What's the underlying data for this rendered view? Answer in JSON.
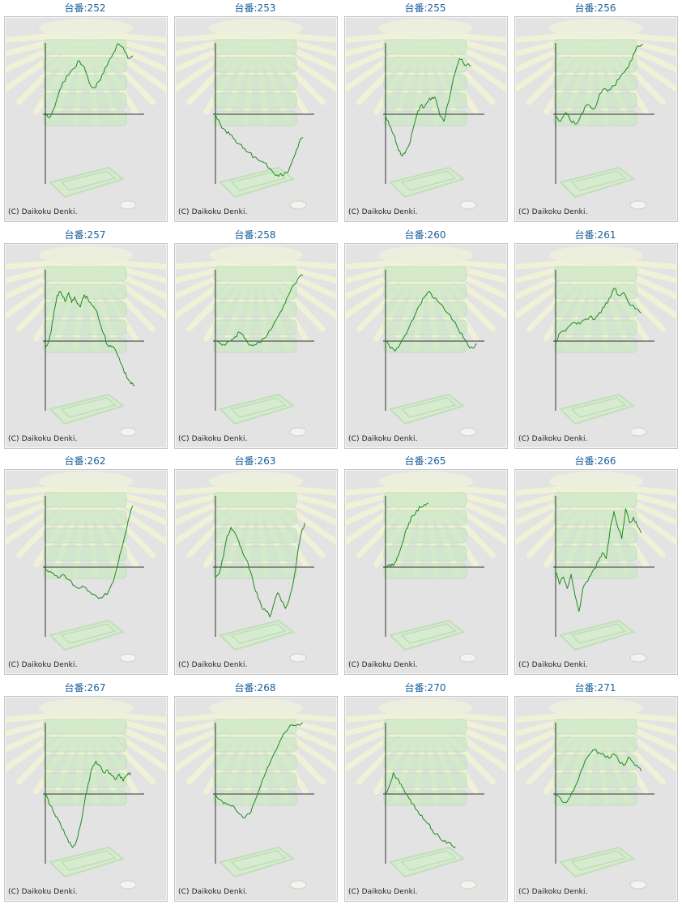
{
  "copyright": "(C) Daikoku Denki.",
  "colors": {
    "line": "#1f8a1f",
    "axis": "#333333",
    "title": "#1a5f9a",
    "panel_bg": "#e3e3e3"
  },
  "chart_data": [
    {
      "type": "line",
      "title": "台番:252",
      "x_range": [
        0,
        100
      ],
      "ylim": [
        -100,
        100
      ],
      "x": [
        0,
        4,
        8,
        13,
        18,
        24,
        30,
        35,
        40,
        45,
        50,
        55,
        60,
        65,
        70,
        75,
        80,
        85,
        90
      ],
      "values": [
        -2,
        -5,
        6,
        26,
        45,
        55,
        65,
        75,
        66,
        45,
        37,
        46,
        58,
        74,
        86,
        99,
        94,
        78,
        82
      ]
    },
    {
      "type": "line",
      "title": "台番:253",
      "x_range": [
        0,
        100
      ],
      "ylim": [
        -100,
        100
      ],
      "x": [
        0,
        5,
        10,
        15,
        20,
        25,
        30,
        35,
        40,
        45,
        50,
        56,
        62,
        66,
        70,
        74,
        78,
        82,
        86,
        90
      ],
      "values": [
        0,
        -14,
        -22,
        -29,
        -36,
        -42,
        -48,
        -54,
        -60,
        -65,
        -68,
        -76,
        -86,
        -85,
        -86,
        -82,
        -70,
        -56,
        -40,
        -32
      ]
    },
    {
      "type": "line",
      "title": "台番:255",
      "x_range": [
        0,
        100
      ],
      "ylim": [
        -100,
        100
      ],
      "x": [
        0,
        4,
        8,
        12,
        16,
        20,
        24,
        28,
        32,
        36,
        40,
        44,
        48,
        52,
        56,
        60,
        64,
        68,
        72,
        76,
        80,
        84,
        88
      ],
      "values": [
        -2,
        -16,
        -28,
        -44,
        -57,
        -55,
        -44,
        -22,
        -2,
        12,
        10,
        18,
        24,
        20,
        -2,
        -10,
        14,
        38,
        60,
        78,
        72,
        70,
        68
      ]
    },
    {
      "type": "line",
      "title": "台番:256",
      "x_range": [
        0,
        100
      ],
      "ylim": [
        -100,
        100
      ],
      "x": [
        0,
        5,
        10,
        15,
        20,
        25,
        30,
        35,
        40,
        45,
        50,
        55,
        60,
        65,
        70,
        75,
        80,
        85,
        90
      ],
      "values": [
        -2,
        -10,
        2,
        -8,
        -14,
        -5,
        10,
        12,
        8,
        28,
        36,
        34,
        40,
        49,
        58,
        66,
        84,
        96,
        98
      ]
    },
    {
      "type": "line",
      "title": "台番:257",
      "x_range": [
        0,
        100
      ],
      "ylim": [
        -100,
        100
      ],
      "x": [
        0,
        3,
        6,
        9,
        12,
        15,
        18,
        21,
        24,
        27,
        30,
        33,
        36,
        40,
        44,
        48,
        52,
        56,
        60,
        64,
        68,
        72,
        76,
        80,
        84,
        88,
        92
      ],
      "values": [
        -10,
        -2,
        14,
        42,
        64,
        70,
        62,
        56,
        68,
        54,
        62,
        52,
        48,
        65,
        58,
        50,
        44,
        26,
        10,
        -6,
        -8,
        -12,
        -24,
        -38,
        -52,
        -60,
        -62
      ]
    },
    {
      "type": "line",
      "title": "台番:258",
      "x_range": [
        0,
        100
      ],
      "ylim": [
        -100,
        100
      ],
      "x": [
        0,
        5,
        10,
        15,
        20,
        25,
        30,
        35,
        40,
        45,
        50,
        55,
        60,
        65,
        70,
        75,
        80,
        85,
        90
      ],
      "values": [
        0,
        -3,
        -6,
        0,
        6,
        12,
        4,
        -6,
        -5,
        -2,
        4,
        14,
        24,
        36,
        50,
        64,
        78,
        88,
        92
      ]
    },
    {
      "type": "line",
      "title": "台番:260",
      "x_range": [
        0,
        100
      ],
      "ylim": [
        -100,
        100
      ],
      "x": [
        0,
        5,
        10,
        15,
        20,
        25,
        30,
        35,
        40,
        45,
        50,
        55,
        60,
        65,
        70,
        75,
        80,
        85,
        90,
        94
      ],
      "values": [
        0,
        -10,
        -14,
        -4,
        8,
        22,
        36,
        50,
        62,
        70,
        60,
        54,
        46,
        38,
        28,
        16,
        5,
        -6,
        -10,
        -4
      ]
    },
    {
      "type": "line",
      "title": "台番:261",
      "x_range": [
        0,
        100
      ],
      "ylim": [
        -100,
        100
      ],
      "x": [
        0,
        5,
        10,
        15,
        20,
        25,
        30,
        35,
        40,
        45,
        50,
        55,
        60,
        65,
        70,
        75,
        80,
        85,
        88
      ],
      "values": [
        -2,
        12,
        14,
        22,
        26,
        24,
        30,
        34,
        30,
        40,
        48,
        60,
        74,
        64,
        68,
        54,
        50,
        44,
        40
      ]
    },
    {
      "type": "line",
      "title": "台番:262",
      "x_range": [
        0,
        100
      ],
      "ylim": [
        -100,
        100
      ],
      "x": [
        0,
        5,
        10,
        15,
        20,
        25,
        30,
        35,
        40,
        45,
        50,
        55,
        60,
        65,
        70,
        75,
        80,
        85,
        90
      ],
      "values": [
        -2,
        -6,
        -12,
        -14,
        -12,
        -18,
        -26,
        -30,
        -28,
        -34,
        -38,
        -44,
        -40,
        -34,
        -20,
        6,
        34,
        64,
        86
      ]
    },
    {
      "type": "line",
      "title": "台番:263",
      "x_range": [
        0,
        100
      ],
      "ylim": [
        -100,
        100
      ],
      "x": [
        0,
        4,
        8,
        12,
        16,
        20,
        24,
        28,
        32,
        36,
        40,
        44,
        48,
        52,
        56,
        60,
        64,
        68,
        72,
        76,
        80,
        84,
        88,
        92
      ],
      "values": [
        -14,
        -8,
        14,
        44,
        56,
        48,
        36,
        20,
        10,
        -6,
        -28,
        -44,
        -58,
        -62,
        -70,
        -52,
        -36,
        -48,
        -58,
        -44,
        -22,
        14,
        46,
        62
      ]
    },
    {
      "type": "line",
      "title": "台番:265",
      "x_range": [
        0,
        100
      ],
      "ylim": [
        -100,
        100
      ],
      "x": [
        0,
        4,
        8,
        12,
        16,
        20,
        24,
        28,
        32,
        36,
        40,
        44
      ],
      "values": [
        -2,
        4,
        2,
        14,
        28,
        48,
        62,
        72,
        80,
        84,
        88,
        90
      ]
    },
    {
      "type": "line",
      "title": "台番:266",
      "x_range": [
        0,
        100
      ],
      "ylim": [
        -100,
        100
      ],
      "x": [
        0,
        4,
        8,
        12,
        16,
        20,
        24,
        28,
        32,
        36,
        40,
        44,
        48,
        52,
        56,
        60,
        64,
        68,
        72,
        76,
        80,
        84,
        88
      ],
      "values": [
        -6,
        -24,
        -14,
        -30,
        -10,
        -40,
        -62,
        -30,
        -20,
        -12,
        -2,
        8,
        20,
        12,
        52,
        78,
        56,
        40,
        82,
        62,
        70,
        58,
        48
      ]
    },
    {
      "type": "line",
      "title": "台番:267",
      "x_range": [
        0,
        100
      ],
      "ylim": [
        -100,
        100
      ],
      "x": [
        0,
        4,
        8,
        12,
        16,
        20,
        24,
        28,
        32,
        36,
        40,
        44,
        48,
        52,
        56,
        60,
        64,
        68,
        72,
        76,
        80,
        84,
        88
      ],
      "values": [
        0,
        -14,
        -24,
        -32,
        -44,
        -56,
        -68,
        -75,
        -66,
        -44,
        -14,
        14,
        36,
        46,
        40,
        30,
        34,
        26,
        20,
        28,
        18,
        26,
        30
      ]
    },
    {
      "type": "line",
      "title": "台番:268",
      "x_range": [
        0,
        100
      ],
      "ylim": [
        -100,
        100
      ],
      "x": [
        0,
        5,
        10,
        15,
        20,
        25,
        30,
        35,
        40,
        45,
        50,
        55,
        60,
        65,
        70,
        75,
        80,
        85,
        90
      ],
      "values": [
        0,
        -8,
        -12,
        -16,
        -20,
        -28,
        -34,
        -28,
        -12,
        6,
        24,
        40,
        56,
        70,
        84,
        92,
        96,
        98,
        100
      ]
    },
    {
      "type": "line",
      "title": "台番:270",
      "x_range": [
        0,
        100
      ],
      "ylim": [
        -100,
        100
      ],
      "x": [
        0,
        4,
        8,
        12,
        16,
        20,
        24,
        28,
        32,
        36,
        40,
        44,
        48,
        52,
        56,
        60,
        64,
        68,
        72
      ],
      "values": [
        0,
        12,
        30,
        22,
        14,
        2,
        -6,
        -14,
        -22,
        -30,
        -36,
        -42,
        -50,
        -56,
        -62,
        -66,
        -68,
        -72,
        -74
      ]
    },
    {
      "type": "line",
      "title": "台番:271",
      "x_range": [
        0,
        100
      ],
      "ylim": [
        -100,
        100
      ],
      "x": [
        0,
        5,
        10,
        15,
        20,
        25,
        30,
        35,
        40,
        45,
        50,
        55,
        60,
        65,
        70,
        75,
        80,
        85,
        88
      ],
      "values": [
        0,
        -6,
        -12,
        -4,
        10,
        28,
        46,
        56,
        62,
        58,
        54,
        50,
        56,
        46,
        40,
        52,
        44,
        38,
        32
      ]
    }
  ]
}
